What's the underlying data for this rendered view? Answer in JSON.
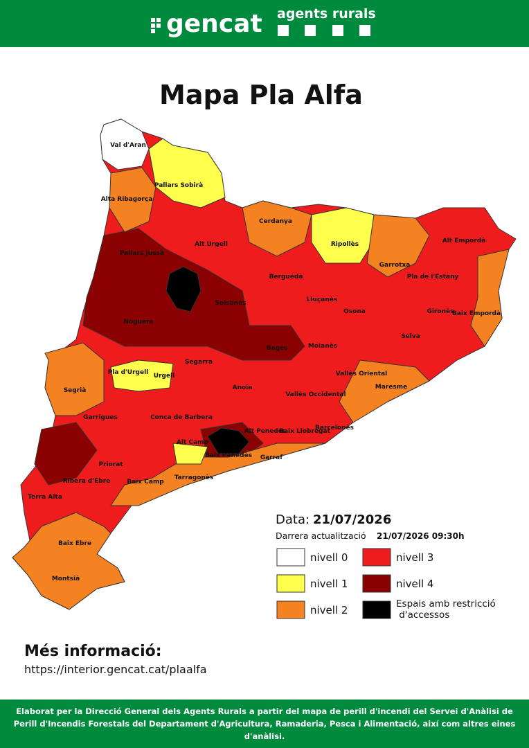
{
  "header": {
    "logo": "gencat",
    "brand": "agents rurals"
  },
  "title": "Mapa Pla Alfa",
  "regions": [
    "Val d'Aran",
    "Pallars Sobirà",
    "Alta Ribagorça",
    "Cerdanya",
    "Alt Urgell",
    "Ripollès",
    "Alt Empordà",
    "Pallars Jussà",
    "Garrotxa",
    "Pla de l'Estany",
    "Berguedà",
    "Solsonès",
    "Lluçanès",
    "Osona",
    "Gironès",
    "Baix Empordà",
    "Noguera",
    "Selva",
    "Bages",
    "Moianès",
    "Segarra",
    "Pla d'Urgell",
    "Urgell",
    "Vallès Oriental",
    "Maresme",
    "Segrià",
    "Anoia",
    "Vallès Occidental",
    "Garrigues",
    "Conca de Barbera",
    "Alt Penedès",
    "Barcelonès",
    "Baix Llobregat",
    "Alt Camp",
    "Baix Penedès",
    "Garraf",
    "Priorat",
    "Ribera d'Ebre",
    "Baix Camp",
    "Tarragonès",
    "Terra Alta",
    "Baix Ebre",
    "Montsià"
  ],
  "date": {
    "label": "Data:",
    "value": "21/07/2026"
  },
  "update": {
    "label": "Darrera actualització",
    "value": "21/07/2026 09:30h"
  },
  "legend": [
    {
      "label": "nivell 0",
      "color": "#ffffff"
    },
    {
      "label": "nivell 1",
      "color": "#ffff4d"
    },
    {
      "label": "nivell 2",
      "color": "#f58220"
    },
    {
      "label": "nivell 3",
      "color": "#ee1c1c"
    },
    {
      "label": "nivell 4",
      "color": "#8b0000"
    },
    {
      "label": "Espais amb restricció d'accessos",
      "color": "#000000"
    }
  ],
  "more_info": {
    "title": "Més informació:",
    "url": "https://interior.gencat.cat/plaalfa"
  },
  "footer": "Elaborat per la Direcció General dels Agents Rurals a partir del mapa de perill d'incendi del Servei d'Anàlisi de Perill d'Incendis Forestals del Departament d'Agricultura, Ramaderia, Pesca i Alimentació, així com altres eines d'anàlisi."
}
